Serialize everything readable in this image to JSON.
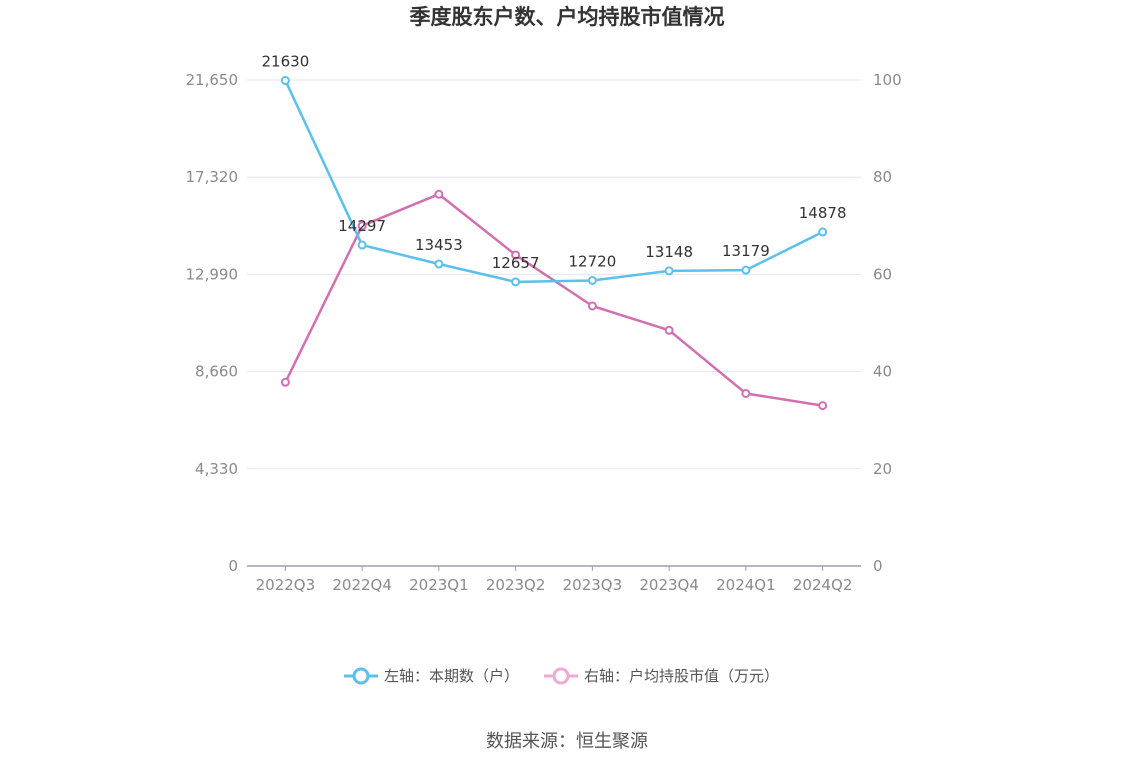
{
  "chart_data": {
    "type": "line",
    "title": "季度股东户数、户均持股市值情况",
    "categories": [
      "2022Q3",
      "2022Q4",
      "2023Q1",
      "2023Q2",
      "2023Q3",
      "2023Q4",
      "2024Q1",
      "2024Q2"
    ],
    "y_left": {
      "ticks": [
        "0",
        "4,330",
        "8,660",
        "12,990",
        "17,320",
        "21,650"
      ],
      "ylim": [
        0,
        21650
      ]
    },
    "y_right": {
      "ticks": [
        "0",
        "20",
        "40",
        "60",
        "80",
        "100"
      ],
      "ylim": [
        0,
        100
      ]
    },
    "series": [
      {
        "name": "左轴：本期数（户）",
        "axis": "left",
        "color": "#5bc0eb",
        "values": [
          21630,
          14297,
          13453,
          12657,
          12720,
          13148,
          13179,
          14878
        ],
        "labels": [
          "21630",
          "14297",
          "13453",
          "12657",
          "12720",
          "13148",
          "13179",
          "14878"
        ]
      },
      {
        "name": "右轴：户均持股市值（万元）",
        "axis": "right",
        "color": "#d36fb0",
        "legend_color": "#eeaad3",
        "values": [
          37.8,
          70.0,
          76.5,
          64.0,
          53.5,
          48.5,
          35.5,
          33.0
        ]
      }
    ],
    "grid": true,
    "legend_position": "bottom",
    "source": "数据来源：恒生聚源"
  }
}
